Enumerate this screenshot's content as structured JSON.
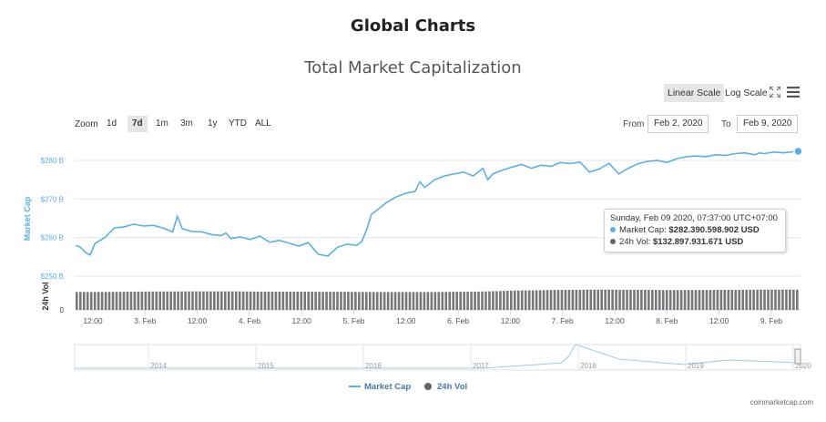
{
  "page_title": "Global Charts",
  "chart_title": "Total Market Capitalization",
  "toolbar": {
    "linear_scale": "Linear Scale",
    "log_scale": "Log Scale",
    "fullscreen_icon": "fullscreen-icon",
    "menu_icon": "menu-icon"
  },
  "zoom": {
    "label": "Zoom",
    "buttons": [
      "1d",
      "7d",
      "1m",
      "3m",
      "1y",
      "YTD",
      "ALL"
    ],
    "active": "7d"
  },
  "range": {
    "from_label": "From",
    "from_value": "Feb 2, 2020",
    "to_label": "To",
    "to_value": "Feb 9, 2020"
  },
  "tooltip": {
    "date": "Sunday, Feb 09 2020, 07:37:00 UTC+07:00",
    "market_cap_label": "Market Cap:",
    "market_cap_value": "$282.390.598.902 USD",
    "vol_label": "24h Vol:",
    "vol_value": "$132.897.931.671 USD"
  },
  "colors": {
    "market_cap": "#5ab0e6",
    "volume": "#666666",
    "active_bg": "#e6e6e6"
  },
  "chart_data": {
    "type": "line",
    "title": "Total Market Capitalization",
    "x_ticks": [
      "12:00",
      "3. Feb",
      "12:00",
      "4. Feb",
      "12:00",
      "5. Feb",
      "12:00",
      "6. Feb",
      "12:00",
      "7. Feb",
      "12:00",
      "8. Feb",
      "12:00",
      "9. Feb"
    ],
    "y_axis_left": {
      "label": "Market Cap",
      "ticks": [
        "$250 B",
        "$260 B",
        "$270 B",
        "$280 B"
      ],
      "range": [
        250,
        285
      ]
    },
    "y_axis_volume": {
      "label": "24h Vol",
      "ticks": [
        "0"
      ]
    },
    "series": [
      {
        "name": "Market Cap",
        "unit": "B USD",
        "x_days": [
          0,
          0.05,
          0.1,
          0.15,
          0.2,
          0.3,
          0.4,
          0.5,
          0.6,
          0.7,
          0.8,
          0.9,
          1.0,
          1.05,
          1.1,
          1.2,
          1.3,
          1.4,
          1.5,
          1.55,
          1.6,
          1.7,
          1.8,
          1.9,
          2.0,
          2.1,
          2.2,
          2.3,
          2.4,
          2.5,
          2.6,
          2.7,
          2.8,
          2.9,
          2.95,
          3.0,
          3.05,
          3.1,
          3.2,
          3.3,
          3.4,
          3.5,
          3.55,
          3.6,
          3.7,
          3.8,
          3.9,
          4.0,
          4.1,
          4.2,
          4.25,
          4.3,
          4.4,
          4.5,
          4.6,
          4.7,
          4.8,
          4.9,
          5.0,
          5.1,
          5.2,
          5.3,
          5.4,
          5.5,
          5.6,
          5.7,
          5.8,
          5.9,
          6.0,
          6.1,
          6.2,
          6.3,
          6.4,
          6.5,
          6.6,
          6.7,
          6.8,
          6.9,
          7.0,
          7.05,
          7.1,
          7.2,
          7.3,
          7.4,
          7.45
        ],
        "values": [
          258.0,
          257.5,
          256.2,
          255.5,
          258.5,
          260.0,
          262.5,
          262.8,
          263.5,
          263.0,
          263.2,
          262.5,
          261.5,
          265.5,
          262.3,
          261.6,
          261.5,
          260.8,
          260.5,
          261.2,
          259.8,
          260.2,
          259.5,
          260.4,
          258.8,
          259.3,
          258.6,
          257.8,
          258.7,
          255.7,
          255.2,
          257.5,
          258.3,
          258.0,
          259.0,
          262.0,
          266.0,
          267.0,
          269.0,
          270.5,
          271.5,
          272.0,
          274.5,
          273.0,
          275.0,
          276.0,
          276.5,
          277.0,
          276.0,
          278.0,
          275.0,
          276.5,
          277.5,
          278.3,
          279.0,
          278.0,
          278.8,
          278.5,
          279.5,
          279.2,
          279.6,
          277.0,
          277.8,
          279.3,
          276.5,
          278.0,
          279.2,
          279.8,
          280.0,
          279.5,
          280.5,
          281.0,
          281.2,
          281.0,
          281.5,
          281.3,
          281.8,
          282.0,
          281.5,
          282.0,
          281.8,
          282.2,
          282.0,
          282.3,
          282.4
        ]
      },
      {
        "name": "24h Vol",
        "unit": "B USD",
        "note_min_max": [
          112,
          133
        ],
        "values": [
          118,
          118,
          119,
          120,
          121,
          121,
          122,
          122,
          122,
          121,
          120,
          120,
          120,
          119,
          119,
          118,
          118,
          118,
          118,
          118,
          119,
          120,
          123,
          127,
          129,
          131,
          132,
          133,
          133,
          132,
          132,
          131,
          131,
          131,
          132,
          132,
          133,
          133,
          133
        ]
      }
    ],
    "navigator": {
      "years": [
        "2014",
        "2015",
        "2016",
        "2017",
        "2018",
        "2019",
        "2020"
      ]
    },
    "legend": [
      "Market Cap",
      "24h Vol"
    ],
    "legend_position": "bottom-center",
    "grid": true
  },
  "credit": "coinmarketcap.com"
}
